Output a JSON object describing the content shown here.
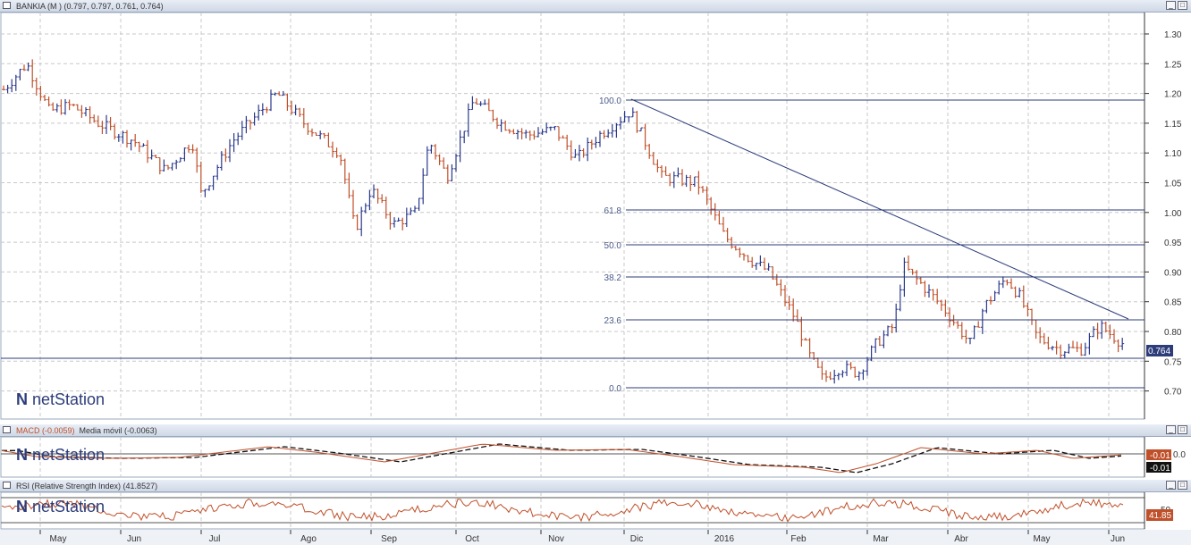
{
  "panels": {
    "price": {
      "title": "BANKIA (M ) (0.797, 0.797, 0.761, 0.764)",
      "last_value": "0.764",
      "yticks": [
        "1.30",
        "1.25",
        "1.20",
        "1.15",
        "1.10",
        "1.05",
        "1.00",
        "0.95",
        "0.90",
        "0.85",
        "0.80",
        "0.75",
        "0.70"
      ]
    },
    "macd": {
      "title": "MACD (-0.0059)",
      "subtitle": "Media móvil (-0.0063)",
      "tick": "0.0",
      "value1": "-0.01",
      "value2": "-0.01"
    },
    "rsi": {
      "title": "RSI (Relative Strength Index) (41.8527)",
      "tick": "50",
      "value": "41.85"
    }
  },
  "fib_levels": [
    "100.0",
    "61.8",
    "50.0",
    "38.2",
    "23.6",
    "0.0"
  ],
  "months": [
    "May",
    "Jun",
    "Jul",
    "Ago",
    "Sep",
    "Oct",
    "Nov",
    "Dic",
    "2016",
    "Feb",
    "Mar",
    "Abr",
    "May",
    "Jun"
  ],
  "watermark": "netStation",
  "colors": {
    "up": "#2b3a8c",
    "down": "#c0502a",
    "grid": "#c8c8c8",
    "line": "#2d3d7a"
  },
  "chart_data": {
    "type": "ohlc",
    "anchors": [
      [
        0,
        1.2
      ],
      [
        30,
        1.25
      ],
      [
        55,
        1.17
      ],
      [
        80,
        1.18
      ],
      [
        110,
        1.15
      ],
      [
        150,
        1.12
      ],
      [
        185,
        1.07
      ],
      [
        215,
        1.12
      ],
      [
        225,
        1.03
      ],
      [
        260,
        1.12
      ],
      [
        310,
        1.2
      ],
      [
        340,
        1.15
      ],
      [
        380,
        1.1
      ],
      [
        397,
        0.97
      ],
      [
        415,
        1.04
      ],
      [
        440,
        0.98
      ],
      [
        465,
        1.0
      ],
      [
        480,
        1.12
      ],
      [
        500,
        1.06
      ],
      [
        530,
        1.19
      ],
      [
        560,
        1.15
      ],
      [
        590,
        1.13
      ],
      [
        620,
        1.14
      ],
      [
        645,
        1.09
      ],
      [
        670,
        1.13
      ],
      [
        705,
        1.17
      ],
      [
        740,
        1.06
      ],
      [
        780,
        1.05
      ],
      [
        810,
        0.96
      ],
      [
        840,
        0.92
      ],
      [
        860,
        0.9
      ],
      [
        890,
        0.82
      ],
      [
        905,
        0.76
      ],
      [
        920,
        0.72
      ],
      [
        940,
        0.74
      ],
      [
        960,
        0.73
      ],
      [
        980,
        0.78
      ],
      [
        1000,
        0.81
      ],
      [
        1010,
        0.91
      ],
      [
        1030,
        0.88
      ],
      [
        1055,
        0.84
      ],
      [
        1085,
        0.78
      ],
      [
        1100,
        0.84
      ],
      [
        1125,
        0.89
      ],
      [
        1140,
        0.86
      ],
      [
        1160,
        0.79
      ],
      [
        1185,
        0.77
      ],
      [
        1210,
        0.77
      ],
      [
        1230,
        0.81
      ],
      [
        1255,
        0.78
      ]
    ]
  }
}
